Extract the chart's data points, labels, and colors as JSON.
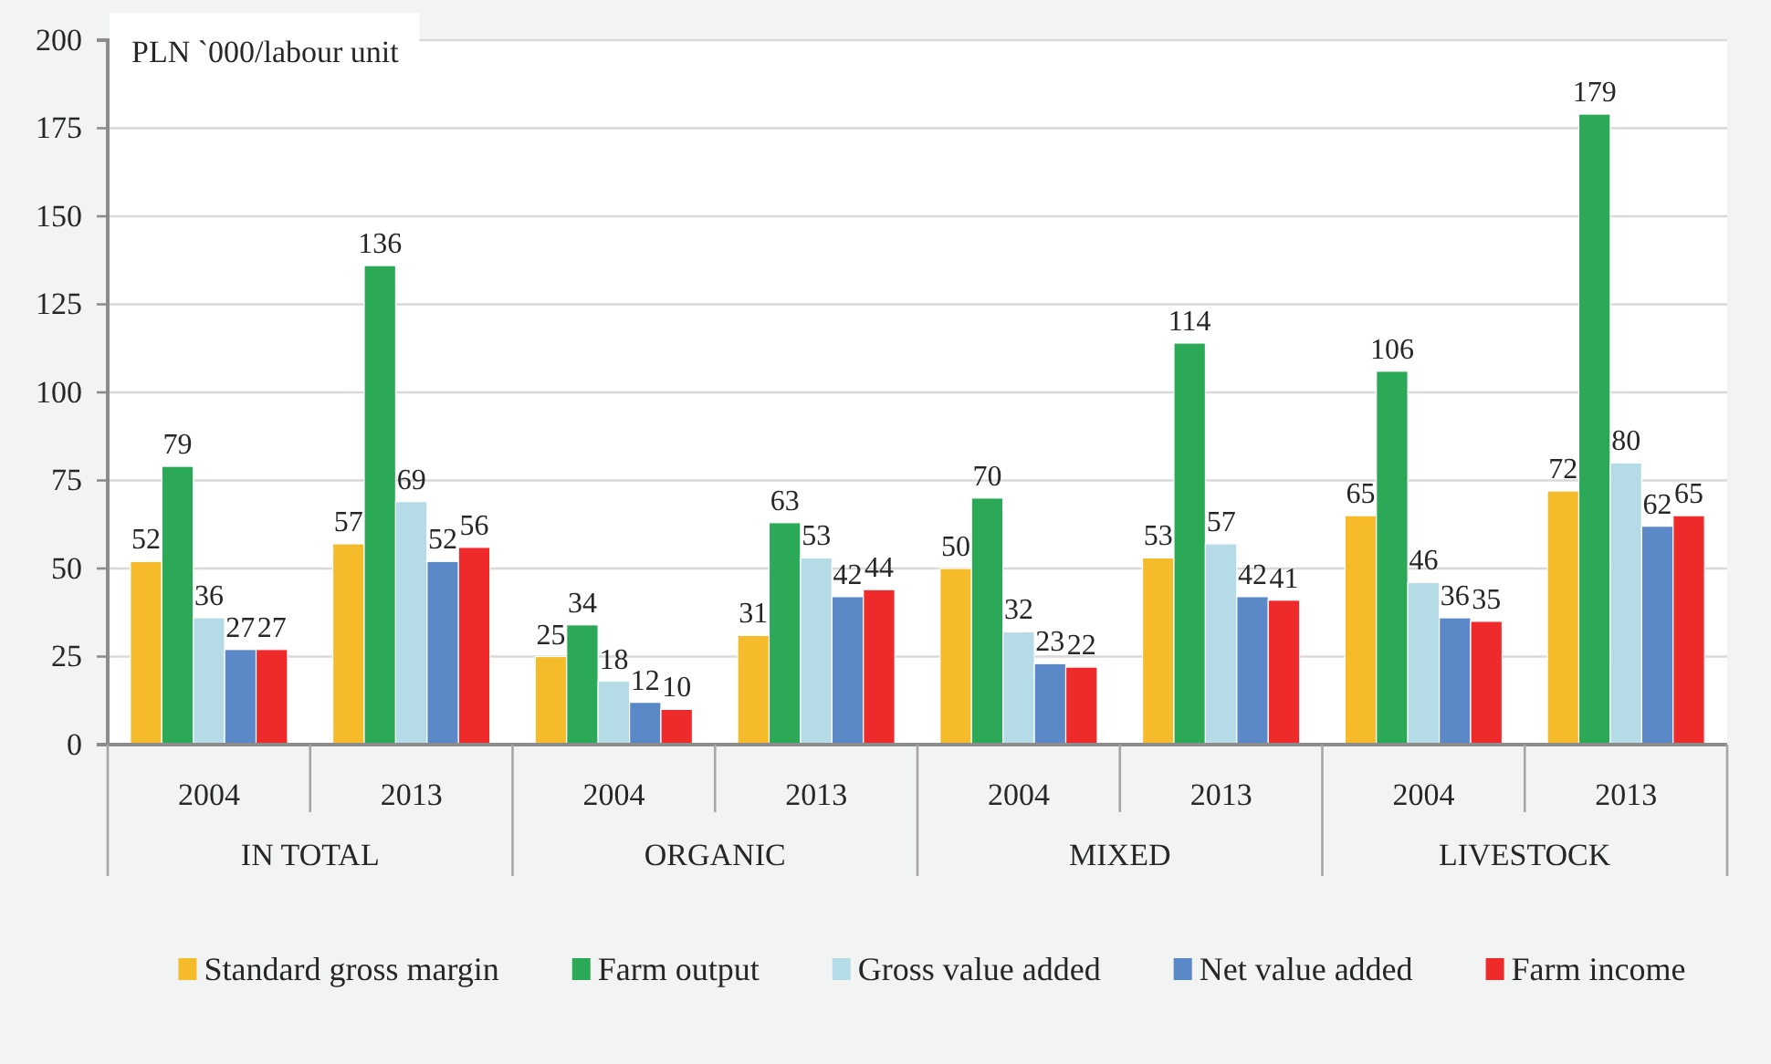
{
  "chart_data": {
    "type": "bar",
    "ylabel": "PLN `000/labour unit",
    "categories": [
      "2004",
      "2013",
      "2004",
      "2013",
      "2004",
      "2013",
      "2004",
      "2013"
    ],
    "annotations": [
      "IN TOTAL",
      "ORGANIC",
      "MIXED",
      "LIVESTOCK"
    ],
    "series": [
      {
        "name": "Standard gross margin",
        "color": "#f5bb2b",
        "values": [
          52,
          57,
          25,
          31,
          50,
          53,
          65,
          72
        ]
      },
      {
        "name": "Farm output",
        "color": "#2ca956",
        "values": [
          79,
          136,
          34,
          63,
          70,
          114,
          106,
          179
        ]
      },
      {
        "name": "Gross value added",
        "color": "#b5dbe6",
        "values": [
          36,
          69,
          18,
          53,
          32,
          57,
          46,
          80
        ]
      },
      {
        "name": "Net value added",
        "color": "#5b89c7",
        "values": [
          27,
          52,
          12,
          42,
          23,
          42,
          36,
          62
        ]
      },
      {
        "name": "Farm income",
        "color": "#ee2a2a",
        "values": [
          27,
          56,
          10,
          44,
          22,
          41,
          35,
          65
        ]
      }
    ],
    "ylim": [
      0,
      200
    ],
    "yticks": [
      0,
      25,
      50,
      75,
      100,
      125,
      150,
      175,
      200
    ],
    "grid": "y",
    "legend": "bottom",
    "data_labels": true
  }
}
